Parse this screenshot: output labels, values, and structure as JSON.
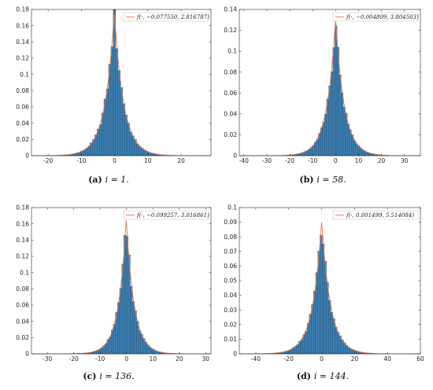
{
  "colors": {
    "bar_fill": "#3b7eb0",
    "bar_edge": "#20486a",
    "fit_line": "#e8774a",
    "axis": "#262626"
  },
  "chart_data": [
    {
      "type": "bar",
      "caption_letter": "(a)",
      "caption_text": "i = 1.",
      "legend": "f(·, −0.077550, 2.816787)",
      "xlim": [
        -25,
        29
      ],
      "ylim": [
        0,
        0.18
      ],
      "xticks": [
        -20,
        -10,
        0,
        10,
        20
      ],
      "yticks": [
        0,
        0.02,
        0.04,
        0.06,
        0.08,
        0.1,
        0.12,
        0.14,
        0.16,
        0.18
      ],
      "fit": {
        "mu": -0.07755,
        "s": 2.816787
      },
      "hist": {
        "start": -20,
        "end": 24,
        "width": 0.7
      }
    },
    {
      "type": "bar",
      "caption_letter": "(b)",
      "caption_text": "i = 58.",
      "legend": "f(·, −0.004809, 3.804503)",
      "xlim": [
        -42,
        37
      ],
      "ylim": [
        0,
        0.14
      ],
      "xticks": [
        -40,
        -30,
        -20,
        -10,
        0,
        10,
        20,
        30
      ],
      "yticks": [
        0,
        0.02,
        0.04,
        0.06,
        0.08,
        0.1,
        0.12,
        0.14
      ],
      "fit": {
        "mu": -0.004809,
        "s": 3.804503
      },
      "hist": {
        "start": -30,
        "end": 33,
        "width": 0.9
      }
    },
    {
      "type": "bar",
      "caption_letter": "(c)",
      "caption_text": "i = 136.",
      "legend": "f(·, −0.099257, 3.016861)",
      "xlim": [
        -36,
        32
      ],
      "ylim": [
        0,
        0.18
      ],
      "xticks": [
        -30,
        -20,
        -10,
        0,
        10,
        20,
        30
      ],
      "yticks": [
        0,
        0.02,
        0.04,
        0.06,
        0.08,
        0.1,
        0.12,
        0.14,
        0.16,
        0.18
      ],
      "fit": {
        "mu": -0.099257,
        "s": 3.016861
      },
      "hist": {
        "start": -25,
        "end": 26,
        "width": 0.8
      }
    },
    {
      "type": "bar",
      "caption_letter": "(d)",
      "caption_text": "i = 144.",
      "legend": "f(·, 0.001499, 5.514084)",
      "xlim": [
        -50,
        60
      ],
      "ylim": [
        0,
        0.1
      ],
      "xticks": [
        -40,
        -20,
        0,
        20,
        40,
        60
      ],
      "yticks": [
        0,
        0.01,
        0.02,
        0.03,
        0.04,
        0.05,
        0.06,
        0.07,
        0.08,
        0.09,
        0.1
      ],
      "fit": {
        "mu": 0.001499,
        "s": 5.514084
      },
      "hist": {
        "start": -40,
        "end": 45,
        "width": 1.3
      }
    }
  ]
}
